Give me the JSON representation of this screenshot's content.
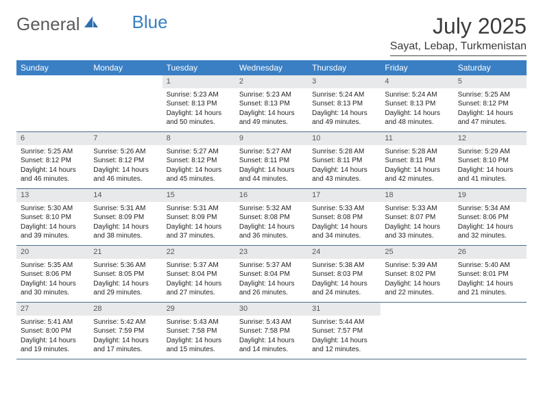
{
  "brand": {
    "part1": "General",
    "part2": "Blue"
  },
  "title": "July 2025",
  "location": "Sayat, Lebap, Turkmenistan",
  "colors": {
    "header_bg": "#3a7fc4",
    "header_fg": "#ffffff",
    "daynum_bg": "#e8e9ea",
    "page_bg": "#ffffff",
    "rule": "#4a6a8a"
  },
  "dayNames": [
    "Sunday",
    "Monday",
    "Tuesday",
    "Wednesday",
    "Thursday",
    "Friday",
    "Saturday"
  ],
  "weeks": [
    [
      null,
      null,
      {
        "n": "1",
        "sr": "Sunrise: 5:23 AM",
        "ss": "Sunset: 8:13 PM",
        "dl1": "Daylight: 14 hours",
        "dl2": "and 50 minutes."
      },
      {
        "n": "2",
        "sr": "Sunrise: 5:23 AM",
        "ss": "Sunset: 8:13 PM",
        "dl1": "Daylight: 14 hours",
        "dl2": "and 49 minutes."
      },
      {
        "n": "3",
        "sr": "Sunrise: 5:24 AM",
        "ss": "Sunset: 8:13 PM",
        "dl1": "Daylight: 14 hours",
        "dl2": "and 49 minutes."
      },
      {
        "n": "4",
        "sr": "Sunrise: 5:24 AM",
        "ss": "Sunset: 8:13 PM",
        "dl1": "Daylight: 14 hours",
        "dl2": "and 48 minutes."
      },
      {
        "n": "5",
        "sr": "Sunrise: 5:25 AM",
        "ss": "Sunset: 8:12 PM",
        "dl1": "Daylight: 14 hours",
        "dl2": "and 47 minutes."
      }
    ],
    [
      {
        "n": "6",
        "sr": "Sunrise: 5:25 AM",
        "ss": "Sunset: 8:12 PM",
        "dl1": "Daylight: 14 hours",
        "dl2": "and 46 minutes."
      },
      {
        "n": "7",
        "sr": "Sunrise: 5:26 AM",
        "ss": "Sunset: 8:12 PM",
        "dl1": "Daylight: 14 hours",
        "dl2": "and 46 minutes."
      },
      {
        "n": "8",
        "sr": "Sunrise: 5:27 AM",
        "ss": "Sunset: 8:12 PM",
        "dl1": "Daylight: 14 hours",
        "dl2": "and 45 minutes."
      },
      {
        "n": "9",
        "sr": "Sunrise: 5:27 AM",
        "ss": "Sunset: 8:11 PM",
        "dl1": "Daylight: 14 hours",
        "dl2": "and 44 minutes."
      },
      {
        "n": "10",
        "sr": "Sunrise: 5:28 AM",
        "ss": "Sunset: 8:11 PM",
        "dl1": "Daylight: 14 hours",
        "dl2": "and 43 minutes."
      },
      {
        "n": "11",
        "sr": "Sunrise: 5:28 AM",
        "ss": "Sunset: 8:11 PM",
        "dl1": "Daylight: 14 hours",
        "dl2": "and 42 minutes."
      },
      {
        "n": "12",
        "sr": "Sunrise: 5:29 AM",
        "ss": "Sunset: 8:10 PM",
        "dl1": "Daylight: 14 hours",
        "dl2": "and 41 minutes."
      }
    ],
    [
      {
        "n": "13",
        "sr": "Sunrise: 5:30 AM",
        "ss": "Sunset: 8:10 PM",
        "dl1": "Daylight: 14 hours",
        "dl2": "and 39 minutes."
      },
      {
        "n": "14",
        "sr": "Sunrise: 5:31 AM",
        "ss": "Sunset: 8:09 PM",
        "dl1": "Daylight: 14 hours",
        "dl2": "and 38 minutes."
      },
      {
        "n": "15",
        "sr": "Sunrise: 5:31 AM",
        "ss": "Sunset: 8:09 PM",
        "dl1": "Daylight: 14 hours",
        "dl2": "and 37 minutes."
      },
      {
        "n": "16",
        "sr": "Sunrise: 5:32 AM",
        "ss": "Sunset: 8:08 PM",
        "dl1": "Daylight: 14 hours",
        "dl2": "and 36 minutes."
      },
      {
        "n": "17",
        "sr": "Sunrise: 5:33 AM",
        "ss": "Sunset: 8:08 PM",
        "dl1": "Daylight: 14 hours",
        "dl2": "and 34 minutes."
      },
      {
        "n": "18",
        "sr": "Sunrise: 5:33 AM",
        "ss": "Sunset: 8:07 PM",
        "dl1": "Daylight: 14 hours",
        "dl2": "and 33 minutes."
      },
      {
        "n": "19",
        "sr": "Sunrise: 5:34 AM",
        "ss": "Sunset: 8:06 PM",
        "dl1": "Daylight: 14 hours",
        "dl2": "and 32 minutes."
      }
    ],
    [
      {
        "n": "20",
        "sr": "Sunrise: 5:35 AM",
        "ss": "Sunset: 8:06 PM",
        "dl1": "Daylight: 14 hours",
        "dl2": "and 30 minutes."
      },
      {
        "n": "21",
        "sr": "Sunrise: 5:36 AM",
        "ss": "Sunset: 8:05 PM",
        "dl1": "Daylight: 14 hours",
        "dl2": "and 29 minutes."
      },
      {
        "n": "22",
        "sr": "Sunrise: 5:37 AM",
        "ss": "Sunset: 8:04 PM",
        "dl1": "Daylight: 14 hours",
        "dl2": "and 27 minutes."
      },
      {
        "n": "23",
        "sr": "Sunrise: 5:37 AM",
        "ss": "Sunset: 8:04 PM",
        "dl1": "Daylight: 14 hours",
        "dl2": "and 26 minutes."
      },
      {
        "n": "24",
        "sr": "Sunrise: 5:38 AM",
        "ss": "Sunset: 8:03 PM",
        "dl1": "Daylight: 14 hours",
        "dl2": "and 24 minutes."
      },
      {
        "n": "25",
        "sr": "Sunrise: 5:39 AM",
        "ss": "Sunset: 8:02 PM",
        "dl1": "Daylight: 14 hours",
        "dl2": "and 22 minutes."
      },
      {
        "n": "26",
        "sr": "Sunrise: 5:40 AM",
        "ss": "Sunset: 8:01 PM",
        "dl1": "Daylight: 14 hours",
        "dl2": "and 21 minutes."
      }
    ],
    [
      {
        "n": "27",
        "sr": "Sunrise: 5:41 AM",
        "ss": "Sunset: 8:00 PM",
        "dl1": "Daylight: 14 hours",
        "dl2": "and 19 minutes."
      },
      {
        "n": "28",
        "sr": "Sunrise: 5:42 AM",
        "ss": "Sunset: 7:59 PM",
        "dl1": "Daylight: 14 hours",
        "dl2": "and 17 minutes."
      },
      {
        "n": "29",
        "sr": "Sunrise: 5:43 AM",
        "ss": "Sunset: 7:58 PM",
        "dl1": "Daylight: 14 hours",
        "dl2": "and 15 minutes."
      },
      {
        "n": "30",
        "sr": "Sunrise: 5:43 AM",
        "ss": "Sunset: 7:58 PM",
        "dl1": "Daylight: 14 hours",
        "dl2": "and 14 minutes."
      },
      {
        "n": "31",
        "sr": "Sunrise: 5:44 AM",
        "ss": "Sunset: 7:57 PM",
        "dl1": "Daylight: 14 hours",
        "dl2": "and 12 minutes."
      },
      null,
      null
    ]
  ]
}
